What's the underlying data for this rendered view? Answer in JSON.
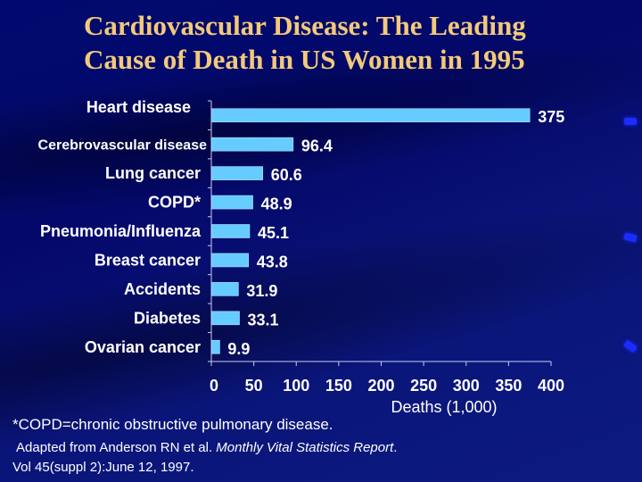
{
  "slide": {
    "title_line1": "Cardiovascular Disease: The Leading",
    "title_line2": "Cause of Death in US Women in 1995",
    "footnote": "*COPD=chronic obstructive pulmonary disease.",
    "source_prefix": " Adapted from Anderson RN et al. ",
    "source_journal": "Monthly Vital Statistics Report",
    "source_suffix": ".",
    "source_line2": "Vol 45(suppl 2):June 12, 1997.",
    "colors": {
      "background": "#04086a",
      "title": "#f3c97a",
      "bar": "#66ccff",
      "text": "#ffffff",
      "decoration": "#1a2cff"
    }
  },
  "chart_data": {
    "type": "bar",
    "orientation": "horizontal",
    "title": "Cardiovascular Disease: The Leading Cause of Death in US Women in 1995",
    "categories": [
      "Heart disease",
      "Cerebrovascular disease",
      "Lung cancer",
      "COPD*",
      "Pneumonia/Influenza",
      "Breast cancer",
      "Accidents",
      "Diabetes",
      "Ovarian cancer"
    ],
    "values": [
      375,
      96.4,
      60.6,
      48.9,
      45.1,
      43.8,
      31.9,
      33.1,
      9.9
    ],
    "value_labels": [
      "375",
      "96.4",
      "60.6",
      "48.9",
      "45.1",
      "43.8",
      "31.9",
      "33.1",
      "9.9"
    ],
    "xlabel": "Deaths (1,000)",
    "ylabel": "",
    "xlim": [
      0,
      400
    ],
    "xticks": [
      0,
      50,
      100,
      150,
      200,
      250,
      300,
      350,
      400
    ],
    "xtick_labels": [
      "0",
      "50",
      "100",
      "150",
      "200",
      "250",
      "300",
      "350",
      "400"
    ],
    "grid": false,
    "legend": "none"
  }
}
